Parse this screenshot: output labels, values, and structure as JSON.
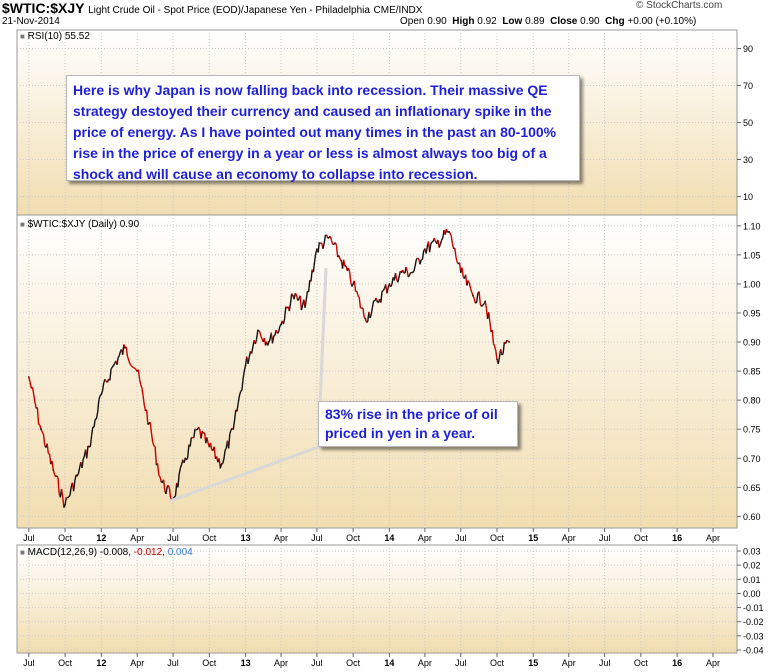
{
  "header": {
    "symbol": "$WTIC:$XJY",
    "description": "Light Crude Oil - Spot Price (EOD)/Japanese Yen - Philadelphia",
    "exchange": "CME/INDX",
    "date": "21-Nov-2014",
    "ohlc": {
      "open_label": "Open",
      "open": "0.90",
      "high_label": "High",
      "high": "0.92",
      "low_label": "Low",
      "low": "0.89",
      "close_label": "Close",
      "close": "0.90",
      "chg_label": "Chg",
      "chg": "+0.00 (+0.10%)"
    },
    "credit": "© StockCharts.com"
  },
  "annotations": {
    "main_text": "Here is why Japan is now falling back into recession. Their massive QE strategy destoyed their currency and caused an inflationary spike in the price of energy. As I have pointed out many times in the past an 80-100% rise in the price of energy in a year or less is almost always too big of a shock and will cause an economy to collapse into recession.",
    "rise_text": "83% rise in the price of oil priced in yen in a year."
  },
  "colors": {
    "panel_bg_top": "#ffffff",
    "panel_bg_bottom": "#f1ddb0",
    "price_line": "#111111",
    "down_bar": "#cc0000",
    "annotation_text": "#1f1fd6",
    "macd_signal": "#cc0000",
    "macd_hist": "#3a7bd5"
  },
  "chart_data": [
    {
      "type": "line",
      "panel": "rsi",
      "label": "RSI(10)",
      "value": "55.52",
      "ylim": [
        0,
        100
      ],
      "yticks": [
        "90",
        "70",
        "50",
        "30",
        "10"
      ],
      "data_visible": false
    },
    {
      "type": "line",
      "panel": "price",
      "label": "$WTIC:$XJY (Daily)",
      "value": "0.90",
      "ylim": [
        0.58,
        1.11
      ],
      "yticks": [
        "1.10",
        "1.05",
        "1.00",
        "0.95",
        "0.90",
        "0.85",
        "0.80",
        "0.75",
        "0.70",
        "0.65",
        "0.60"
      ],
      "xticks": [
        "Jul",
        "Oct",
        "12",
        "Apr",
        "Jul",
        "Oct",
        "13",
        "Apr",
        "Jul",
        "Oct",
        "14",
        "Apr",
        "Jul",
        "Oct",
        "15",
        "Apr",
        "Jul",
        "Oct",
        "16",
        "Apr"
      ],
      "x": [
        "2011-07",
        "2011-08",
        "2011-09",
        "2011-10",
        "2011-11",
        "2011-12",
        "2012-01",
        "2012-02",
        "2012-03",
        "2012-04",
        "2012-05",
        "2012-06",
        "2012-07",
        "2012-08",
        "2012-09",
        "2012-10",
        "2012-11",
        "2012-12",
        "2013-01",
        "2013-02",
        "2013-03",
        "2013-04",
        "2013-05",
        "2013-06",
        "2013-07",
        "2013-08",
        "2013-09",
        "2013-10",
        "2013-11",
        "2013-12",
        "2014-01",
        "2014-02",
        "2014-03",
        "2014-04",
        "2014-05",
        "2014-06",
        "2014-07",
        "2014-08",
        "2014-09",
        "2014-10",
        "2014-11"
      ],
      "values": [
        0.84,
        0.75,
        0.68,
        0.62,
        0.67,
        0.72,
        0.81,
        0.86,
        0.89,
        0.85,
        0.76,
        0.66,
        0.63,
        0.7,
        0.75,
        0.72,
        0.69,
        0.75,
        0.86,
        0.92,
        0.9,
        0.93,
        0.98,
        0.96,
        1.06,
        1.08,
        1.04,
        1.0,
        0.94,
        0.97,
        1.0,
        1.02,
        1.02,
        1.06,
        1.07,
        1.09,
        1.02,
        0.98,
        0.97,
        0.87,
        0.9
      ]
    },
    {
      "type": "line",
      "panel": "macd",
      "label": "MACD(12,26,9)",
      "macd": "-0.008",
      "signal": "-0.012",
      "histogram": "0.004",
      "ylim": [
        -0.04,
        0.03
      ],
      "yticks": [
        "0.03",
        "0.02",
        "0.01",
        "0.00",
        "-0.01",
        "-0.02",
        "-0.03",
        "-0.04"
      ],
      "xticks": [
        "Jul",
        "Oct",
        "12",
        "Apr",
        "Jul",
        "Oct",
        "13",
        "Apr",
        "Jul",
        "Oct",
        "14",
        "Apr",
        "Jul",
        "Oct",
        "15",
        "Apr",
        "Jul",
        "Oct",
        "16",
        "Apr"
      ],
      "data_visible": false
    }
  ]
}
